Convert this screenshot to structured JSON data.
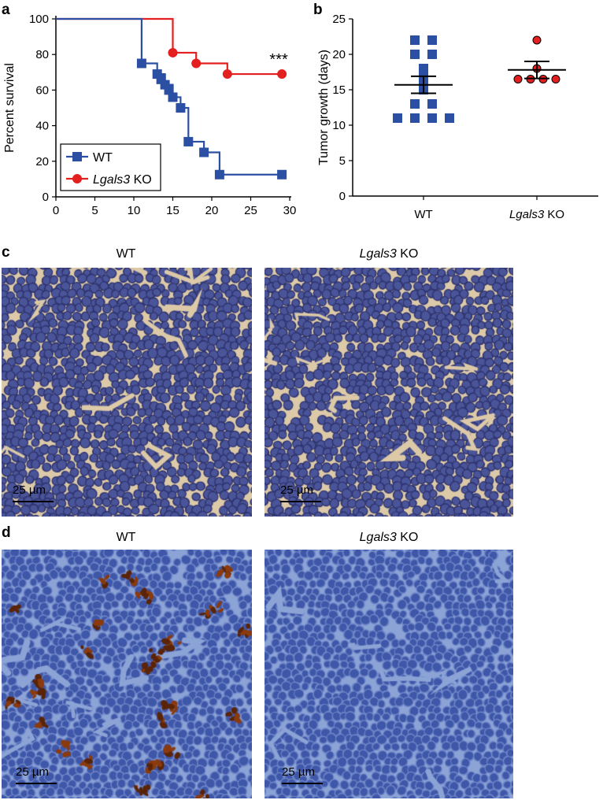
{
  "panels": {
    "a": "a",
    "b": "b",
    "c": "c",
    "d": "d"
  },
  "chart_data": [
    {
      "type": "line",
      "panel": "a",
      "ylabel": "Percent survival",
      "xlabel": "",
      "xlim": [
        0,
        30
      ],
      "ylim": [
        0,
        100
      ],
      "xticks": [
        "0",
        "5",
        "10",
        "15",
        "20",
        "25",
        "30"
      ],
      "yticks": [
        "0",
        "20",
        "40",
        "60",
        "80",
        "100"
      ],
      "annotation": "***",
      "legend_position": "bottom-left",
      "series": [
        {
          "name": "WT",
          "color": "#2b4fa3",
          "marker": "square",
          "steps": [
            [
              0,
              100
            ],
            [
              11,
              75
            ],
            [
              13,
              69
            ],
            [
              14,
              63
            ],
            [
              15,
              56
            ],
            [
              16,
              50
            ],
            [
              17,
              31
            ],
            [
              19,
              25
            ],
            [
              21,
              12.5
            ],
            [
              29,
              12.5
            ]
          ],
          "markers": [
            [
              11,
              75
            ],
            [
              13,
              69
            ],
            [
              13.5,
              66
            ],
            [
              14,
              63
            ],
            [
              14.5,
              60
            ],
            [
              15,
              56
            ],
            [
              16,
              50
            ],
            [
              17,
              31
            ],
            [
              19,
              25
            ],
            [
              21,
              12.5
            ],
            [
              29,
              12.5
            ]
          ]
        },
        {
          "name_main": "Lgals3",
          "name_suffix": " KO",
          "color": "#e41f1f",
          "marker": "circle",
          "steps": [
            [
              0,
              100
            ],
            [
              15,
              81
            ],
            [
              18,
              75
            ],
            [
              22,
              69
            ],
            [
              29,
              69
            ]
          ],
          "markers": [
            [
              15,
              81
            ],
            [
              18,
              75
            ],
            [
              22,
              69
            ],
            [
              29,
              69
            ]
          ]
        }
      ]
    },
    {
      "type": "scatter",
      "panel": "b",
      "ylabel": "Tumor growth (days)",
      "ylim": [
        0,
        25
      ],
      "yticks": [
        "0",
        "5",
        "10",
        "15",
        "20",
        "25"
      ],
      "categories": [
        "WT",
        "Lgals3 KO"
      ],
      "category_labels": [
        {
          "main": "WT",
          "suffix": ""
        },
        {
          "main": "Lgals3",
          "suffix": " KO"
        }
      ],
      "groups": [
        {
          "name": "WT",
          "color": "#2b4fa3",
          "marker": "square",
          "points": [
            22,
            22,
            20,
            20,
            18,
            17,
            16,
            15,
            13,
            13,
            11,
            11,
            11,
            11
          ],
          "mean": 15.7,
          "sem_low": 14.5,
          "sem_high": 16.9
        },
        {
          "name": "Lgals3 KO",
          "color": "#e41f1f",
          "marker": "circle",
          "points": [
            22,
            18,
            16.5,
            16.5,
            16.5,
            16.5
          ],
          "mean": 17.8,
          "sem_low": 16.6,
          "sem_high": 19.0
        }
      ]
    }
  ],
  "micrographs": {
    "c": {
      "left_title": "WT",
      "right_title_main": "Lgals3",
      "right_title_suffix": " KO",
      "scale_left": "25 µm",
      "scale_right": "25 µm",
      "stain": "H&E"
    },
    "d": {
      "left_title": "WT",
      "right_title_main": "Lgals3",
      "right_title_suffix": " KO",
      "scale_left": "25 µm",
      "scale_right": "25 µm",
      "stain": "IHC"
    }
  },
  "colors": {
    "wt": "#2b4fa3",
    "ko": "#e41f1f",
    "he_bg": "#dcc9a8",
    "he_cell": "#4a5498",
    "ihc_bg": "#8ca3d6",
    "ihc_cell": "#3f57a8",
    "ihc_brown": "#8a3a0c"
  }
}
